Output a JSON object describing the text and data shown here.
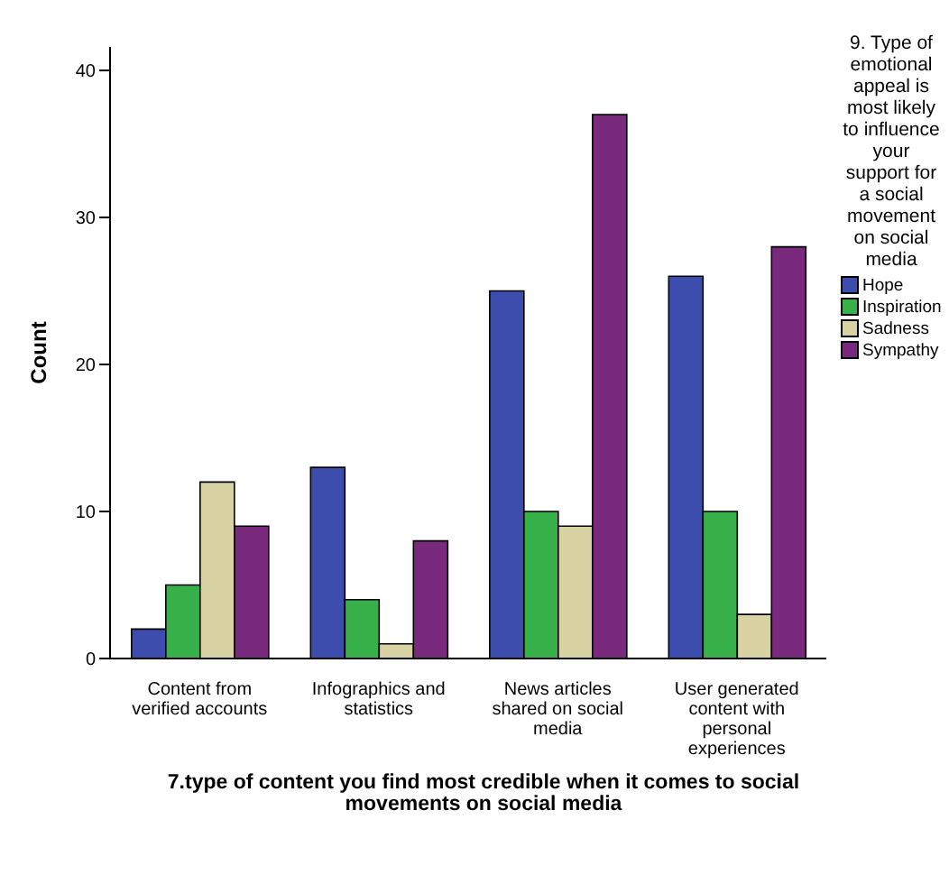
{
  "chart_data": {
    "type": "bar",
    "xlabel": "7.type of content you find most credible when it comes to social movements on social media",
    "ylabel": "Count",
    "legend_title": "9. Type of emotional appeal is most likely to influence your support for a social movement on social media",
    "categories": [
      "Content from verified accounts",
      "Infographics and statistics",
      "News articles shared on social media",
      "User generated content with personal experiences"
    ],
    "series": [
      {
        "name": "Hope",
        "color": "#3c4dad",
        "values": [
          2,
          13,
          25,
          26
        ]
      },
      {
        "name": "Inspiration",
        "color": "#38b04a",
        "values": [
          5,
          4,
          10,
          10
        ]
      },
      {
        "name": "Sadness",
        "color": "#d9d3a3",
        "values": [
          12,
          1,
          9,
          3
        ]
      },
      {
        "name": "Sympathy",
        "color": "#7a2a7d",
        "values": [
          9,
          8,
          37,
          28
        ]
      }
    ],
    "ylim": [
      0,
      41.6
    ],
    "yticks": [
      0,
      10,
      20,
      30,
      40
    ],
    "grid": false,
    "legend": "right"
  }
}
